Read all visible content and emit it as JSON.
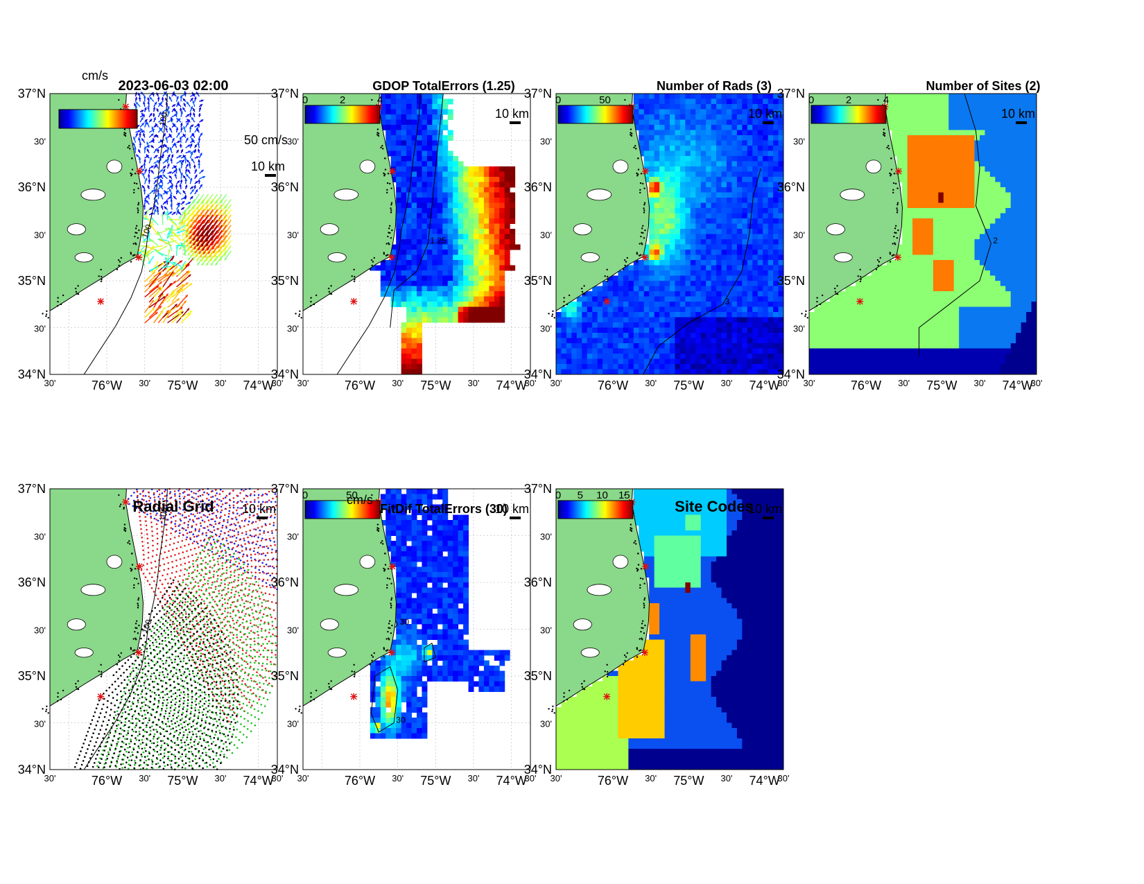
{
  "figure": {
    "timestamp": "2023-06-03 02:00",
    "scale_bar_label": "10 km",
    "unit_label": "cm/s"
  },
  "axes": {
    "lat_ticks": [
      "37°N",
      "30'",
      "36°N",
      "30'",
      "35°N",
      "30'",
      "34°N"
    ],
    "lon_ticks": [
      "30'",
      "76°W",
      "30'",
      "75°W",
      "30'",
      "74°W",
      "30'"
    ]
  },
  "colors": {
    "land": "#8ad88a",
    "site_marker": "#e01010",
    "site_blue": "#2020e0",
    "site_red": "#e02020",
    "site_green": "#20c020",
    "site_black": "#000000"
  },
  "chart_data": [
    {
      "type": "quiver-map",
      "title": "2023-06-03 02:00",
      "colorbar": {
        "label": "cm/s",
        "range": [
          0,
          100
        ]
      },
      "reference_vector_label": "50 cm/s",
      "contour_label": "100",
      "sites": [
        {
          "lon": -75.75,
          "lat": 36.86
        },
        {
          "lon": -75.57,
          "lat": 36.17
        },
        {
          "lon": -75.58,
          "lat": 35.25
        },
        {
          "lon": -76.08,
          "lat": 34.78
        }
      ]
    },
    {
      "type": "heatmap",
      "title": "GDOP TotalErrors (1.25)",
      "colorbar": {
        "ticks": [
          "0",
          "2",
          "4"
        ],
        "range": [
          0,
          4
        ]
      },
      "contour_level": "1.25"
    },
    {
      "type": "heatmap",
      "title": "Number of Rads (3)",
      "colorbar": {
        "ticks": [
          "0",
          "50"
        ],
        "range": [
          0,
          80
        ]
      },
      "contour_level": "3"
    },
    {
      "type": "heatmap",
      "title": "Number of Sites (2)",
      "colorbar": {
        "ticks": [
          "0",
          "2",
          "4"
        ],
        "range": [
          0,
          4
        ]
      },
      "contour_level": "2"
    },
    {
      "type": "scatter",
      "title": "Radial Grid",
      "contour_label": "100",
      "series": [
        {
          "color": "#2020e0",
          "origin": {
            "lon": -75.75,
            "lat": 36.86
          }
        },
        {
          "color": "#e02020",
          "origin": {
            "lon": -75.57,
            "lat": 36.17
          }
        },
        {
          "color": "#20c020",
          "origin": {
            "lon": -75.58,
            "lat": 35.25
          }
        },
        {
          "color": "#000000",
          "origin": {
            "lon": -76.08,
            "lat": 34.78
          }
        }
      ]
    },
    {
      "type": "heatmap",
      "title": "FitDif TotalErrors (30)",
      "colorbar": {
        "label": "cm/s",
        "ticks": [
          "0",
          "50"
        ],
        "range": [
          0,
          80
        ]
      },
      "contour_level": "30"
    },
    {
      "type": "heatmap",
      "title": "Site Codes",
      "colorbar": {
        "ticks": [
          "0",
          "5",
          "10",
          "15"
        ],
        "range": [
          0,
          17
        ]
      }
    }
  ]
}
